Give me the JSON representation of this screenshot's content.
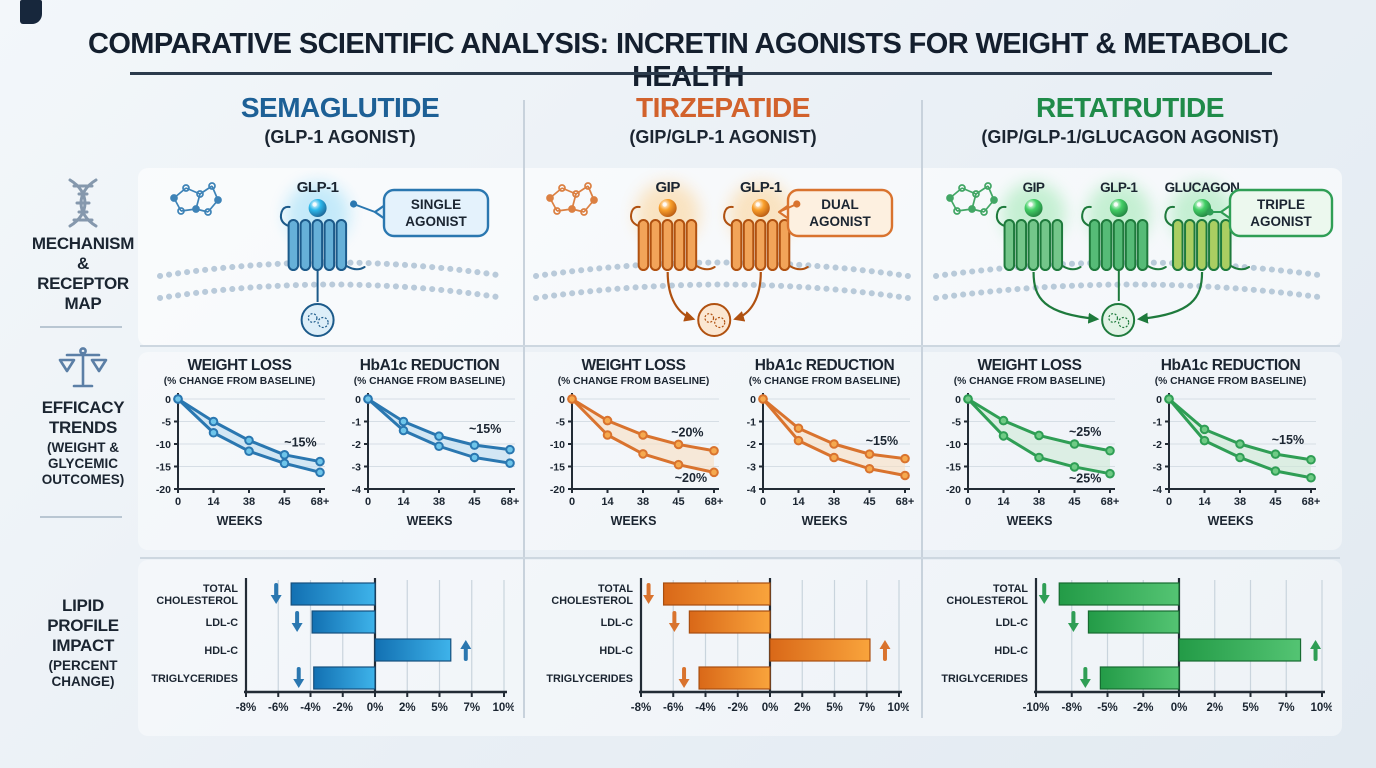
{
  "title": "COMPARATIVE SCIENTIFIC ANALYSIS: INCRETIN AGONISTS FOR WEIGHT & METABOLIC HEALTH",
  "sidebar": {
    "rows": [
      {
        "icon": "dna-icon",
        "label": "MECHANISM & RECEPTOR MAP"
      },
      {
        "icon": "scale-icon",
        "label": "EFFICACY TRENDS",
        "sublabel": "(WEIGHT & GLYCEMIC OUTCOMES)"
      },
      {
        "icon": null,
        "label": "LIPID PROFILE IMPACT",
        "sublabel": "(PERCENT CHANGE)"
      }
    ]
  },
  "drugs": [
    {
      "name": "SEMAGLUTIDE",
      "subtitle": "(GLP-1 AGONIST)",
      "receptors": [
        "GLP-1"
      ],
      "callout": [
        "SINGLE",
        "AGONIST"
      ],
      "header_color": "#1d6096",
      "color": "#2a77b0",
      "color_dark": "#1c5a8a",
      "ligand_color": "#2cb9ec",
      "glow_color": "#56c8f5",
      "receptor_fills": [
        "#66b0d8"
      ],
      "callout_fill": "#e4f2fc",
      "cell_fill": "#ddeef8"
    },
    {
      "name": "TIRZEPATIDE",
      "subtitle": "(GIP/GLP-1 AGONIST)",
      "receptors": [
        "GIP",
        "GLP-1"
      ],
      "callout": [
        "DUAL",
        "AGONIST"
      ],
      "header_color": "#d2622c",
      "color": "#d9732e",
      "color_dark": "#b05110",
      "ligand_color": "#f9a02b",
      "glow_color": "#ffb648",
      "receptor_fills": [
        "#f2a459",
        "#f2a459"
      ],
      "callout_fill": "#fdf0e0",
      "cell_fill": "#fbe7d2"
    },
    {
      "name": "RETATRUTIDE",
      "subtitle": "(GIP/GLP-1/GLUCAGON AGONIST)",
      "receptors": [
        "GIP",
        "GLP-1",
        "GLUCAGON"
      ],
      "callout": [
        "TRIPLE",
        "AGONIST"
      ],
      "header_color": "#1f8b49",
      "color": "#2f9e55",
      "color_dark": "#1e7a3c",
      "ligand_color": "#43cf66",
      "glow_color": "#5fdd7e",
      "receptor_fills": [
        "#74c68a",
        "#56bb77",
        "#aace62"
      ],
      "callout_fill": "#ecf8ee",
      "cell_fill": "#e2f3e6"
    }
  ],
  "chart_data": [
    {
      "id": "semaglutide-weight",
      "type": "line",
      "title": "WEIGHT LOSS",
      "subtitle": "(% CHANGE FROM BASELINE)",
      "xlabel": "WEEKS",
      "x_labels": [
        "0",
        "14",
        "38",
        "45",
        "68+"
      ],
      "ylim": [
        -20,
        0
      ],
      "yticks": [
        0,
        -5,
        -10,
        -15,
        -20
      ],
      "series": [
        {
          "name": "upper",
          "values": [
            0,
            -5,
            -9.2,
            -12.4,
            -13.9
          ]
        },
        {
          "name": "lower",
          "values": [
            0,
            -7.5,
            -11.6,
            -14.3,
            -16.3
          ]
        }
      ],
      "annotations": [
        {
          "text": "~15%",
          "x": 3.45,
          "y": -10.5
        }
      ],
      "color": "#2a77b0",
      "color_dark": "#1c5a8a",
      "marker_fill": "#6ec5ea",
      "band_fill": "#bcdcf0"
    },
    {
      "id": "semaglutide-hba1c",
      "type": "line",
      "title": "HbA1c REDUCTION",
      "subtitle": "(% CHANGE FROM BASELINE)",
      "xlabel": "WEEKS",
      "x_labels": [
        "0",
        "14",
        "38",
        "45",
        "68+"
      ],
      "ylim": [
        -4,
        0
      ],
      "yticks": [
        0,
        -1,
        -2,
        -3,
        -4
      ],
      "series": [
        {
          "name": "upper",
          "values": [
            0,
            -1.0,
            -1.65,
            -2.05,
            -2.25
          ]
        },
        {
          "name": "lower",
          "values": [
            0,
            -1.4,
            -2.1,
            -2.6,
            -2.85
          ]
        }
      ],
      "annotations": [
        {
          "text": "~15%",
          "x": 3.3,
          "y": -1.5
        }
      ],
      "color": "#2a77b0",
      "color_dark": "#1c5a8a",
      "marker_fill": "#6ec5ea",
      "band_fill": "#bcdcf0"
    },
    {
      "id": "tirzepatide-weight",
      "type": "line",
      "title": "WEIGHT LOSS",
      "subtitle": "(% CHANGE FROM BASELINE)",
      "xlabel": "WEEKS",
      "x_labels": [
        "0",
        "14",
        "38",
        "45",
        "68+"
      ],
      "ylim": [
        -20,
        0
      ],
      "yticks": [
        0,
        -5,
        -10,
        -15,
        -20
      ],
      "series": [
        {
          "name": "upper",
          "values": [
            0,
            -4.8,
            -8.0,
            -10.1,
            -11.5
          ]
        },
        {
          "name": "lower",
          "values": [
            0,
            -8.0,
            -12.2,
            -14.6,
            -16.3
          ]
        }
      ],
      "annotations": [
        {
          "text": "~20%",
          "x": 3.25,
          "y": -8.3
        },
        {
          "text": "~20%",
          "x": 3.35,
          "y": -18.4
        }
      ],
      "color": "#d9732e",
      "color_dark": "#b05110",
      "marker_fill": "#f5a94e",
      "band_fill": "#f8dfc2"
    },
    {
      "id": "tirzepatide-hba1c",
      "type": "line",
      "title": "HbA1c REDUCTION",
      "subtitle": "(% CHANGE FROM BASELINE)",
      "xlabel": "WEEKS",
      "x_labels": [
        "0",
        "14",
        "38",
        "45",
        "68+"
      ],
      "ylim": [
        -4,
        0
      ],
      "yticks": [
        0,
        -1,
        -2,
        -3,
        -4
      ],
      "series": [
        {
          "name": "upper",
          "values": [
            0,
            -1.3,
            -2.0,
            -2.45,
            -2.65
          ]
        },
        {
          "name": "lower",
          "values": [
            0,
            -1.85,
            -2.6,
            -3.1,
            -3.4
          ]
        }
      ],
      "annotations": [
        {
          "text": "~15%",
          "x": 3.35,
          "y": -2.05
        }
      ],
      "color": "#d9732e",
      "color_dark": "#b05110",
      "marker_fill": "#f5a94e",
      "band_fill": "#f8dfc2"
    },
    {
      "id": "retatrutide-weight",
      "type": "line",
      "title": "WEIGHT LOSS",
      "subtitle": "(% CHANGE FROM BASELINE)",
      "xlabel": "WEEKS",
      "x_labels": [
        "0",
        "14",
        "38",
        "45",
        "68+"
      ],
      "ylim": [
        -20,
        0
      ],
      "yticks": [
        0,
        -5,
        -10,
        -15,
        -20
      ],
      "series": [
        {
          "name": "upper",
          "values": [
            0,
            -4.8,
            -8.1,
            -10.0,
            -11.5
          ]
        },
        {
          "name": "lower",
          "values": [
            0,
            -8.2,
            -13.0,
            -15.1,
            -16.6
          ]
        }
      ],
      "annotations": [
        {
          "text": "~25%",
          "x": 3.3,
          "y": -8.2
        },
        {
          "text": "~25%",
          "x": 3.3,
          "y": -18.5
        }
      ],
      "color": "#2f9e55",
      "color_dark": "#1e7a3c",
      "marker_fill": "#6fcb85",
      "band_fill": "#cfead6"
    },
    {
      "id": "retatrutide-hba1c",
      "type": "line",
      "title": "HbA1c REDUCTION",
      "subtitle": "(% CHANGE FROM BASELINE)",
      "xlabel": "WEEKS",
      "x_labels": [
        "0",
        "14",
        "38",
        "45",
        "68+"
      ],
      "ylim": [
        -4,
        0
      ],
      "yticks": [
        0,
        -1,
        -2,
        -3,
        -4
      ],
      "series": [
        {
          "name": "upper",
          "values": [
            0,
            -1.35,
            -2.0,
            -2.45,
            -2.7
          ]
        },
        {
          "name": "lower",
          "values": [
            0,
            -1.85,
            -2.6,
            -3.2,
            -3.5
          ]
        }
      ],
      "annotations": [
        {
          "text": "~15%",
          "x": 3.35,
          "y": -2.0
        }
      ],
      "color": "#2f9e55",
      "color_dark": "#1e7a3c",
      "marker_fill": "#6fcb85",
      "band_fill": "#cfead6"
    },
    {
      "id": "semaglutide-lipids",
      "type": "bar",
      "categories": [
        "TOTAL CHOLESTEROL",
        "LDL-C",
        "HDL-C",
        "TRIGLYCERIDES"
      ],
      "values": [
        -5.2,
        -3.9,
        5.7,
        -3.8
      ],
      "arrows": [
        "down",
        "down",
        "up",
        "down"
      ],
      "tick_values": [
        -8,
        -6,
        -4,
        -2,
        0,
        2,
        5,
        7,
        10
      ],
      "tick_labels": [
        "-8%",
        "-6%",
        "-4%",
        "-2%",
        "0%",
        "2%",
        "5%",
        "7%",
        "10%"
      ],
      "bar_from": "#1270b2",
      "bar_to": "#3eb3ea",
      "color": "#2a77b0",
      "color_dark": "#15507e"
    },
    {
      "id": "tirzepatide-lipids",
      "type": "bar",
      "categories": [
        "TOTAL CHOLESTEROL",
        "LDL-C",
        "HDL-C",
        "TRIGLYCERIDES"
      ],
      "values": [
        -6.6,
        -5.0,
        7.3,
        -4.4
      ],
      "arrows": [
        "down",
        "down",
        "up",
        "down"
      ],
      "tick_values": [
        -8,
        -6,
        -4,
        -2,
        0,
        2,
        5,
        7,
        10
      ],
      "tick_labels": [
        "-8%",
        "-6%",
        "-4%",
        "-2%",
        "0%",
        "2%",
        "5%",
        "7%",
        "10%"
      ],
      "bar_from": "#d96818",
      "bar_to": "#f9a43c",
      "color": "#d9732e",
      "color_dark": "#a84e10"
    },
    {
      "id": "retatrutide-lipids",
      "type": "bar",
      "categories": [
        "TOTAL CHOLESTEROL",
        "LDL-C",
        "HDL-C",
        "TRIGLYCERIDES"
      ],
      "values": [
        -8.7,
        -6.6,
        8.2,
        -5.6
      ],
      "arrows": [
        "down",
        "down",
        "up",
        "down"
      ],
      "tick_values": [
        -10,
        -8,
        -5,
        -2,
        0,
        2,
        5,
        7,
        10
      ],
      "tick_labels": [
        "-10%",
        "-8%",
        "-5%",
        "-2%",
        "0%",
        "2%",
        "5%",
        "7%",
        "10%"
      ],
      "bar_from": "#239b47",
      "bar_to": "#54c473",
      "color": "#2f9e55",
      "color_dark": "#176b31"
    }
  ]
}
